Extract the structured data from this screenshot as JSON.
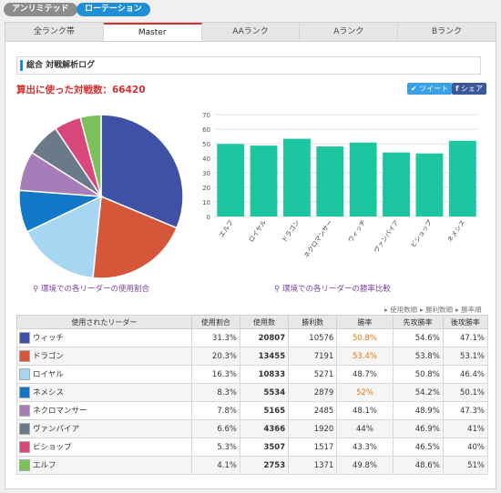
{
  "top_tags": {
    "unlimited": "アンリミテッド",
    "rotation": "ローテーション"
  },
  "tabs": [
    "全ランク帯",
    "Master",
    "AAランク",
    "Aランク",
    "Bランク"
  ],
  "section_title": "総合 対戦解析ログ",
  "battle_count": "算出に使った対戦数：66420",
  "share": {
    "tweet": "ツイート",
    "facebook": "シェア"
  },
  "pie_caption": "環境での各リーダーの使用割合",
  "bar_caption": "環境での各リーダーの勝率比較",
  "sort_notes": [
    "▸ 使用数順",
    "▸ 勝利数順",
    "▸ 勝率順"
  ],
  "table": {
    "headers": [
      "使用されたリーダー",
      "使用割合",
      "使用数",
      "勝利数",
      "勝率",
      "先攻勝率",
      "後攻勝率"
    ],
    "rows": [
      {
        "leader": "ウィッチ",
        "share": "31.3%",
        "uses": "20807",
        "wins": "10576",
        "winrate": "50.8%",
        "first": "54.6%",
        "second": "47.1%",
        "hi": true,
        "color": "#3f51a5"
      },
      {
        "leader": "ドラゴン",
        "share": "20.3%",
        "uses": "13455",
        "wins": "7191",
        "winrate": "53.4%",
        "first": "53.8%",
        "second": "53.1%",
        "hi": true,
        "color": "#d4573a"
      },
      {
        "leader": "ロイヤル",
        "share": "16.3%",
        "uses": "10833",
        "wins": "5271",
        "winrate": "48.7%",
        "first": "50.8%",
        "second": "46.4%",
        "hi": false,
        "color": "#a6d6f2"
      },
      {
        "leader": "ネメシス",
        "share": "8.3%",
        "uses": "5534",
        "wins": "2879",
        "winrate": "52%",
        "first": "54.2%",
        "second": "50.1%",
        "hi": true,
        "color": "#1177c6"
      },
      {
        "leader": "ネクロマンサー",
        "share": "7.8%",
        "uses": "5165",
        "wins": "2485",
        "winrate": "48.1%",
        "first": "48.9%",
        "second": "47.3%",
        "hi": false,
        "color": "#a67db8"
      },
      {
        "leader": "ヴァンパイア",
        "share": "6.6%",
        "uses": "4366",
        "wins": "1920",
        "winrate": "44%",
        "first": "46.9%",
        "second": "41%",
        "hi": false,
        "color": "#6b7a89"
      },
      {
        "leader": "ビショップ",
        "share": "5.3%",
        "uses": "3507",
        "wins": "1517",
        "winrate": "43.3%",
        "first": "46.5%",
        "second": "40%",
        "hi": false,
        "color": "#d9487a"
      },
      {
        "leader": "エルフ",
        "share": "4.1%",
        "uses": "2753",
        "wins": "1371",
        "winrate": "49.8%",
        "first": "48.6%",
        "second": "51%",
        "hi": false,
        "color": "#7cc05a"
      }
    ]
  },
  "chart_data": [
    {
      "type": "pie",
      "title": "環境での各リーダーの使用割合",
      "labels": [
        "ウィッチ",
        "ドラゴン",
        "ロイヤル",
        "ネメシス",
        "ネクロマンサー",
        "ヴァンパイア",
        "ビショップ",
        "エルフ"
      ],
      "values": [
        31.3,
        20.3,
        16.3,
        8.3,
        7.8,
        6.6,
        5.3,
        4.1
      ],
      "colors": [
        "#3f51a5",
        "#d4573a",
        "#a6d6f2",
        "#1177c6",
        "#a67db8",
        "#6b7a89",
        "#d9487a",
        "#7cc05a"
      ]
    },
    {
      "type": "bar",
      "title": "環境での各リーダーの勝率比較",
      "categories": [
        "エルフ",
        "ロイヤル",
        "ドラゴン",
        "ネクロマンサー",
        "ウィッチ",
        "ヴァンパイア",
        "ビショップ",
        "ネメシス"
      ],
      "values": [
        49.8,
        48.7,
        53.4,
        48.1,
        50.8,
        44,
        43.3,
        52
      ],
      "ylim": [
        0,
        70
      ],
      "yticks": [
        0,
        10,
        20,
        30,
        40,
        50,
        60,
        70
      ],
      "color": "#1cc6a0",
      "grid": true
    }
  ]
}
